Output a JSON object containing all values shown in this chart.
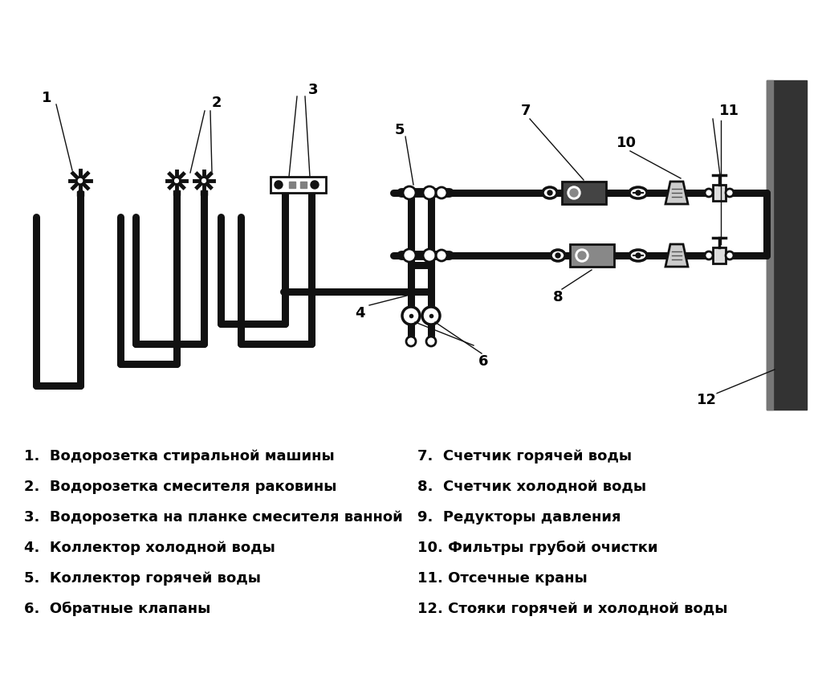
{
  "bg_color": "#ffffff",
  "pipe_color": "#111111",
  "pipe_lw": 6.5,
  "labels_left": [
    "1.  Водорозетка стиральной машины",
    "2.  Водорозетка смесителя раковины",
    "3.  Водорозетка на планке смесителя ванной",
    "4.  Коллектор холодной воды",
    "5.  Коллектор горячей воды",
    "6.  Обратные клапаны"
  ],
  "labels_right": [
    "7.  Счетчик горячей воды",
    "8.  Счетчик холодной воды",
    "9.  Редукторы давления",
    "10. Фильтры грубой очистки",
    "11. Отсечные краны",
    "12. Стояки горячей и холодной воды"
  ],
  "font_size_label": 13,
  "ann_lw": 1.0,
  "ann_fs": 13
}
